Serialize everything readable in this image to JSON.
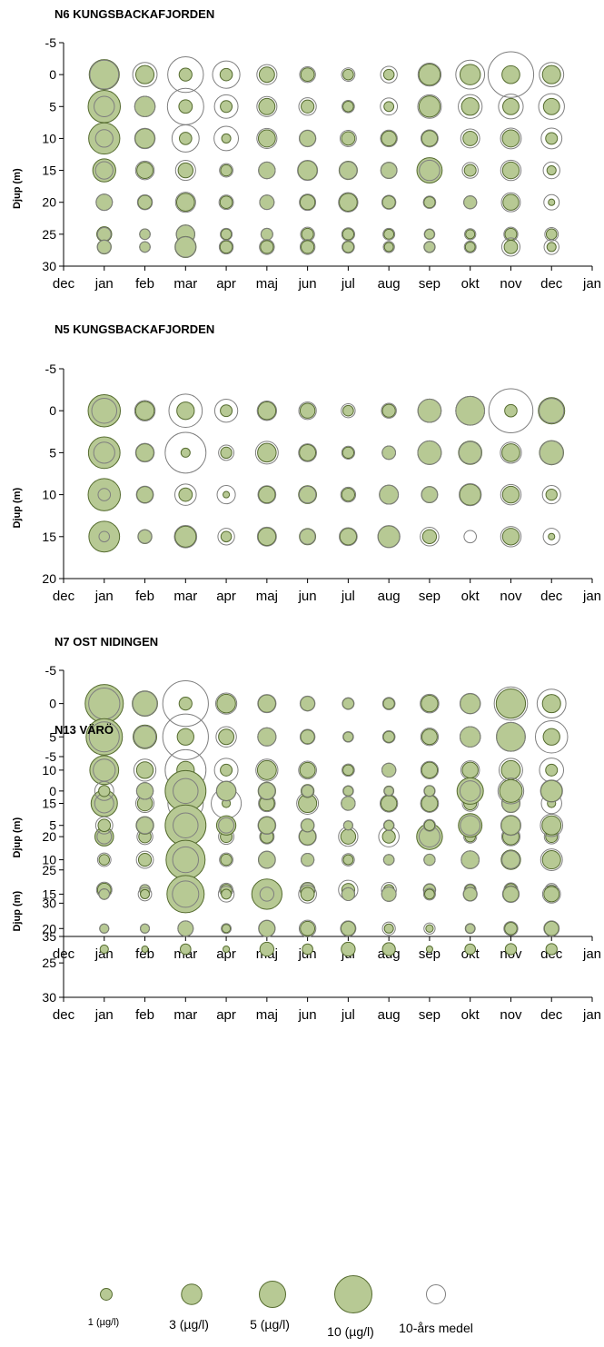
{
  "chart_data": [
    {
      "type": "bubble",
      "title": "N6 KUNGSBACKAFJORDEN",
      "ylabel": "Djup (m)",
      "ylim": [
        30,
        -5
      ],
      "yticks": [
        -5,
        0,
        5,
        10,
        15,
        20,
        25,
        30
      ],
      "xticks": [
        "dec",
        "jan",
        "feb",
        "mar",
        "apr",
        "maj",
        "jun",
        "jul",
        "aug",
        "sep",
        "okt",
        "nov",
        "dec",
        "jan"
      ],
      "months": [
        "jan",
        "feb",
        "mar",
        "apr",
        "maj",
        "jun",
        "jul",
        "aug",
        "sep",
        "okt",
        "nov",
        "dec"
      ],
      "depths": [
        0,
        5,
        10,
        15,
        20,
        25,
        27
      ],
      "values": [
        [
          6.5,
          2.4,
          1.2,
          1.1,
          1.7,
          1.3,
          0.8,
          0.8,
          3.3,
          3.0,
          2.3,
          2.4
        ],
        [
          7.5,
          3.0,
          1.3,
          1.0,
          1.9,
          1.2,
          0.8,
          0.7,
          3.2,
          2.2,
          1.9,
          1.9
        ],
        [
          7.0,
          2.8,
          1.1,
          0.6,
          2.1,
          1.9,
          1.3,
          1.6,
          1.8,
          1.5,
          2.1,
          1.0
        ],
        [
          3.8,
          1.9,
          1.6,
          0.9,
          2.0,
          2.7,
          2.4,
          1.9,
          4.6,
          1.0,
          2.0,
          0.6
        ],
        [
          1.9,
          1.4,
          2.3,
          1.1,
          1.5,
          1.6,
          2.3,
          1.2,
          0.9,
          1.2,
          1.8,
          0.3
        ],
        [
          1.6,
          0.8,
          2.5,
          0.8,
          1.0,
          1.0,
          0.9,
          0.7,
          0.7,
          0.6,
          1.0,
          0.8
        ],
        [
          1.4,
          0.8,
          3.2,
          1.1,
          1.2,
          1.2,
          0.9,
          0.6,
          0.9,
          0.7,
          1.3,
          0.6
        ]
      ],
      "avg10": [
        [
          6.0,
          4.3,
          9.2,
          5.4,
          2.9,
          1.8,
          1.3,
          2.0,
          3.8,
          6.0,
          15.0,
          4.3
        ],
        [
          3.0,
          3.0,
          9.5,
          4.0,
          2.9,
          2.2,
          1.1,
          2.1,
          4.0,
          4.1,
          4.4,
          4.8
        ],
        [
          2.2,
          3.0,
          5.3,
          4.3,
          2.9,
          2.0,
          1.9,
          2.0,
          2.1,
          2.6,
          3.1,
          3.1
        ],
        [
          2.2,
          2.5,
          2.9,
          1.3,
          2.0,
          2.9,
          2.2,
          1.8,
          3.0,
          1.8,
          3.0,
          2.0
        ],
        [
          1.9,
          1.6,
          2.9,
          1.5,
          1.5,
          1.9,
          2.7,
          1.4,
          1.1,
          1.2,
          2.6,
          1.7
        ],
        [
          1.3,
          0.8,
          2.4,
          1.0,
          1.0,
          1.4,
          1.2,
          1.0,
          0.8,
          0.9,
          1.4,
          1.3
        ],
        [
          1.3,
          0.8,
          3.0,
          1.4,
          1.6,
          1.6,
          1.1,
          0.9,
          0.8,
          1.0,
          2.4,
          1.6
        ]
      ]
    },
    {
      "type": "bubble",
      "title": "N5 KUNGSBACKAFJORDEN",
      "ylabel": "Djup (m)",
      "ylim": [
        20,
        -5
      ],
      "yticks": [
        -5,
        0,
        5,
        10,
        15,
        20
      ],
      "xticks": [
        "dec",
        "jan",
        "feb",
        "mar",
        "apr",
        "maj",
        "jun",
        "jul",
        "aug",
        "sep",
        "okt",
        "nov",
        "dec",
        "jan"
      ],
      "months": [
        "jan",
        "feb",
        "mar",
        "apr",
        "maj",
        "jun",
        "jul",
        "aug",
        "sep",
        "okt",
        "nov",
        "dec"
      ],
      "depths": [
        0,
        5,
        10,
        15
      ],
      "values": [
        [
          7.5,
          2.5,
          2.2,
          1.0,
          2.3,
          1.6,
          0.8,
          1.2,
          3.9,
          6.0,
          1.1,
          5.0
        ],
        [
          7.2,
          2.3,
          0.6,
          0.9,
          2.5,
          1.9,
          0.9,
          1.3,
          4.0,
          3.9,
          2.3,
          4.2
        ],
        [
          7.5,
          1.9,
          1.3,
          0.3,
          2.0,
          2.3,
          1.2,
          2.6,
          1.9,
          3.2,
          2.0,
          0.9
        ],
        [
          6.8,
          1.4,
          3.2,
          0.8,
          2.3,
          1.9,
          2.0,
          3.4,
          1.4,
          0.0,
          2.0,
          0.3
        ]
      ],
      "avg10": [
        [
          4.5,
          3.0,
          8.0,
          3.8,
          2.7,
          2.2,
          1.4,
          1.6,
          3.9,
          6.0,
          14.0,
          4.4
        ],
        [
          3.2,
          2.5,
          12.0,
          1.7,
          3.7,
          2.3,
          1.2,
          1.3,
          4.0,
          3.6,
          3.2,
          4.0
        ],
        [
          1.1,
          2.1,
          3.3,
          2.4,
          2.3,
          2.0,
          1.6,
          2.6,
          1.8,
          3.5,
          3.0,
          2.4
        ],
        [
          0.8,
          1.3,
          3.6,
          2.0,
          2.6,
          1.7,
          2.3,
          3.5,
          2.5,
          1.1,
          3.0,
          2.0
        ]
      ]
    },
    {
      "type": "bubble",
      "title": "N7 OST NIDINGEN",
      "ylabel": "Djup (m)",
      "ylim": [
        35,
        -5
      ],
      "yticks": [
        -5,
        0,
        5,
        10,
        15,
        20,
        25,
        30,
        35
      ],
      "xticks": [
        "dec",
        "jan",
        "feb",
        "mar",
        "apr",
        "maj",
        "jun",
        "jul",
        "aug",
        "sep",
        "okt",
        "nov",
        "dec",
        "jan"
      ],
      "months": [
        "jan",
        "feb",
        "mar",
        "apr",
        "maj",
        "jun",
        "jul",
        "aug",
        "sep",
        "okt",
        "nov",
        "dec"
      ],
      "depths": [
        0,
        5,
        10,
        15,
        20,
        28
      ],
      "values": [
        [
          10.5,
          4.6,
          1.2,
          2.5,
          2.2,
          1.5,
          0.9,
          0.9,
          2.0,
          2.9,
          6.2,
          2.4
        ],
        [
          9.5,
          4.0,
          2.0,
          1.7,
          2.4,
          1.4,
          0.7,
          0.9,
          1.7,
          3.0,
          6.0,
          2.0
        ],
        [
          6.0,
          2.0,
          2.2,
          1.0,
          2.6,
          1.7,
          0.8,
          1.4,
          1.8,
          1.8,
          2.6,
          1.0
        ],
        [
          5.0,
          1.6,
          2.4,
          0.5,
          1.6,
          2.4,
          1.4,
          1.8,
          1.9,
          1.2,
          2.4,
          0.5
        ],
        [
          2.5,
          1.1,
          1.7,
          1.0,
          1.2,
          2.0,
          1.6,
          1.2,
          4.8,
          0.8,
          1.9,
          1.0
        ],
        [
          1.3,
          0.8,
          1.5,
          0.9,
          1.0,
          1.6,
          1.2,
          0.8,
          1.0,
          0.8,
          1.1,
          0.7
        ]
      ],
      "avg10": [
        [
          7.0,
          4.3,
          15.0,
          3.2,
          2.4,
          1.6,
          1.0,
          1.1,
          2.5,
          3.0,
          8.0,
          6.0
        ],
        [
          6.5,
          3.5,
          15.0,
          3.0,
          2.4,
          1.6,
          0.8,
          1.1,
          2.2,
          3.0,
          6.0,
          7.5
        ],
        [
          3.5,
          3.5,
          12.0,
          4.0,
          3.5,
          2.3,
          1.1,
          1.4,
          2.2,
          2.5,
          4.0,
          4.2
        ],
        [
          2.6,
          2.4,
          9.0,
          6.5,
          2.0,
          3.4,
          1.4,
          2.2,
          2.3,
          1.8,
          2.3,
          3.0
        ],
        [
          1.5,
          1.8,
          2.5,
          1.7,
          1.5,
          2.2,
          2.7,
          3.0,
          3.1,
          1.2,
          2.4,
          1.5
        ],
        [
          1.7,
          0.8,
          1.6,
          1.3,
          1.0,
          1.4,
          2.7,
          1.6,
          1.1,
          1.0,
          1.4,
          1.2
        ]
      ]
    },
    {
      "type": "bubble",
      "title": "N13 VÄRÖ",
      "ylabel": "Djup (m)",
      "ylim": [
        30,
        -5
      ],
      "yticks": [
        -5,
        0,
        5,
        10,
        15,
        20,
        25,
        30
      ],
      "xticks": [
        "dec",
        "jan",
        "feb",
        "mar",
        "apr",
        "maj",
        "jun",
        "jul",
        "aug",
        "sep",
        "okt",
        "nov",
        "dec",
        "jan"
      ],
      "months": [
        "jan",
        "feb",
        "mar",
        "apr",
        "maj",
        "jun",
        "jul",
        "aug",
        "sep",
        "okt",
        "nov",
        "dec"
      ],
      "depths": [
        0,
        5,
        10,
        15,
        20,
        23
      ],
      "values": [
        [
          0.9,
          2.0,
          12.0,
          2.7,
          2.2,
          1.2,
          0.7,
          0.7,
          0.8,
          5.0,
          3.7,
          3.3
        ],
        [
          1.1,
          2.2,
          12.0,
          2.7,
          2.1,
          1.2,
          0.6,
          0.7,
          0.8,
          4.0,
          2.7,
          2.6
        ],
        [
          0.8,
          1.2,
          11.0,
          0.9,
          2.1,
          1.2,
          0.7,
          0.8,
          0.9,
          2.3,
          2.7,
          2.4
        ],
        [
          0.8,
          0.6,
          10.0,
          0.7,
          6.6,
          1.3,
          1.2,
          1.5,
          0.7,
          1.3,
          1.8,
          1.7
        ],
        [
          0.6,
          0.6,
          1.7,
          0.5,
          1.9,
          1.5,
          1.5,
          0.6,
          0.4,
          0.7,
          1.1,
          1.5
        ],
        [
          0.5,
          0.3,
          0.8,
          0.3,
          1.4,
          0.8,
          1.4,
          1.2,
          0.3,
          0.8,
          0.9,
          0.9
        ]
      ],
      "avg10": [
        [
          2.6,
          2.0,
          4.5,
          2.8,
          2.0,
          1.0,
          0.8,
          0.6,
          0.9,
          3.0,
          4.8,
          3.5
        ],
        [
          2.1,
          2.0,
          4.5,
          1.7,
          2.3,
          1.3,
          0.6,
          0.8,
          1.0,
          2.8,
          2.9,
          3.6
        ],
        [
          1.3,
          2.1,
          4.8,
          1.3,
          2.0,
          1.2,
          1.1,
          0.8,
          0.9,
          2.3,
          2.3,
          3.4
        ],
        [
          0.8,
          1.3,
          5.0,
          1.8,
          1.4,
          2.3,
          1.2,
          1.5,
          1.0,
          1.4,
          2.0,
          2.3
        ],
        [
          0.6,
          0.6,
          1.7,
          0.7,
          2.0,
          2.0,
          1.7,
          1.2,
          0.9,
          0.6,
          1.4,
          1.7
        ],
        [
          0.0,
          0.0,
          0.0,
          0.0,
          0.0,
          0.0,
          0.0,
          0.0,
          0.0,
          0.0,
          0.0,
          0.0
        ]
      ]
    }
  ],
  "legend": {
    "items": [
      {
        "label": "1 (µg/l)",
        "value": 1
      },
      {
        "label": "3 (µg/l)",
        "value": 3
      },
      {
        "label": "5 (µg/l)",
        "value": 5
      },
      {
        "label": "10 (µg/l)",
        "value": 10
      }
    ],
    "avg_label": "10-års medel"
  },
  "colors": {
    "fill": "#b7c994",
    "stroke": "#556b2f",
    "open_stroke": "#7f7f7f",
    "axis": "#000000"
  }
}
